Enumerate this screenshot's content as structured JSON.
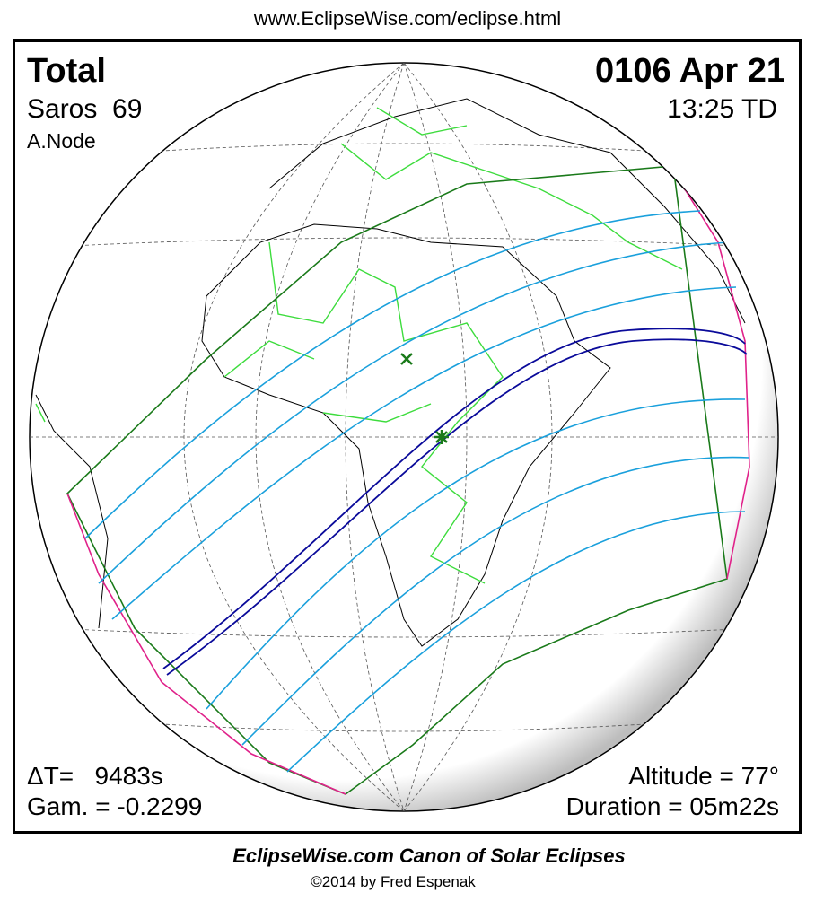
{
  "header": {
    "url": "www.EclipseWise.com/eclipse.html"
  },
  "panel": {
    "eclipse_type": "Total",
    "saros": "Saros  69",
    "node": "A.Node",
    "date": "0106 Apr 21",
    "time": "13:25 TD",
    "delta_t": "ΔT=   9483s",
    "gamma": "Gam. = -0.2299",
    "altitude": "Altitude = 77°",
    "duration": "Duration = 05m22s"
  },
  "footer": {
    "title": "EclipseWise.com Canon of Solar Eclipses",
    "copyright": "©2014 by Fred Espenak"
  }
}
